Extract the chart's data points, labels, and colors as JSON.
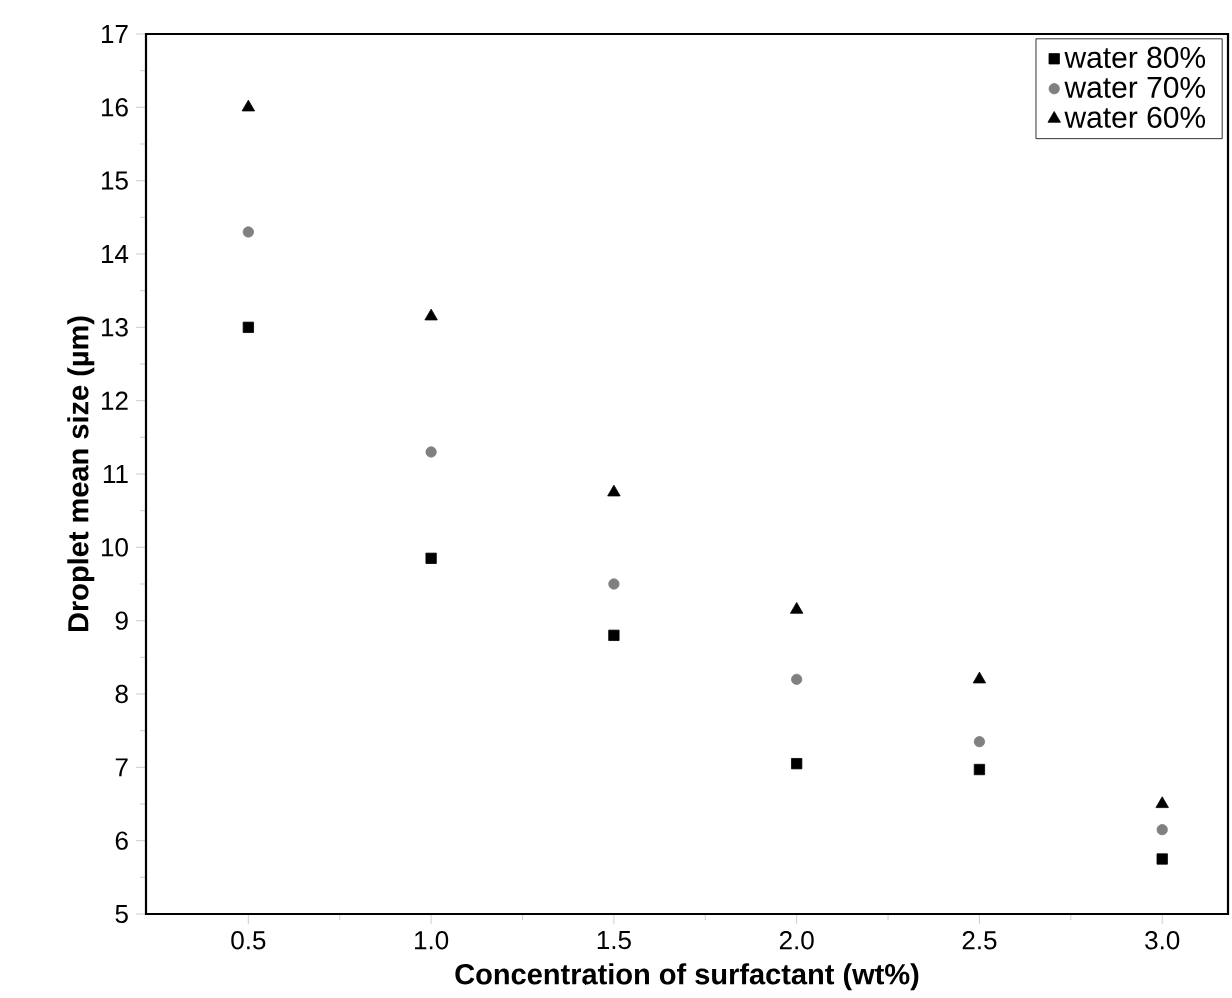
{
  "chart_data": {
    "type": "scatter",
    "xlabel": "Concentration of surfactant (wt%)",
    "ylabel": "Droplet mean size (µm)",
    "x": [
      0.5,
      1.0,
      1.5,
      2.0,
      2.5,
      3.0
    ],
    "series": [
      {
        "name": "water 80%",
        "color": "#000000",
        "marker": "square",
        "values": [
          13.0,
          9.85,
          8.8,
          7.05,
          6.97,
          5.75
        ]
      },
      {
        "name": "water 70%",
        "color": "#808080",
        "marker": "circle",
        "values": [
          14.3,
          11.3,
          9.5,
          8.2,
          7.35,
          6.15
        ]
      },
      {
        "name": "water 60%",
        "color": "#000000",
        "marker": "triangle",
        "values": [
          16.0,
          13.15,
          10.75,
          9.15,
          8.2,
          6.5
        ]
      }
    ],
    "xlim": [
      0.22,
      3.18
    ],
    "ylim": [
      5,
      17
    ],
    "xticks": [
      {
        "value": 0.5,
        "label": "0.5"
      },
      {
        "value": 1.0,
        "label": "1.0"
      },
      {
        "value": 1.5,
        "label": "1.5"
      },
      {
        "value": 2.0,
        "label": "2.0"
      },
      {
        "value": 2.5,
        "label": "2.5"
      },
      {
        "value": 3.0,
        "label": "3.0"
      }
    ],
    "yticks": [
      5,
      6,
      7,
      8,
      9,
      10,
      11,
      12,
      13,
      14,
      15,
      16,
      17
    ],
    "legend": "top right",
    "grid": false
  }
}
